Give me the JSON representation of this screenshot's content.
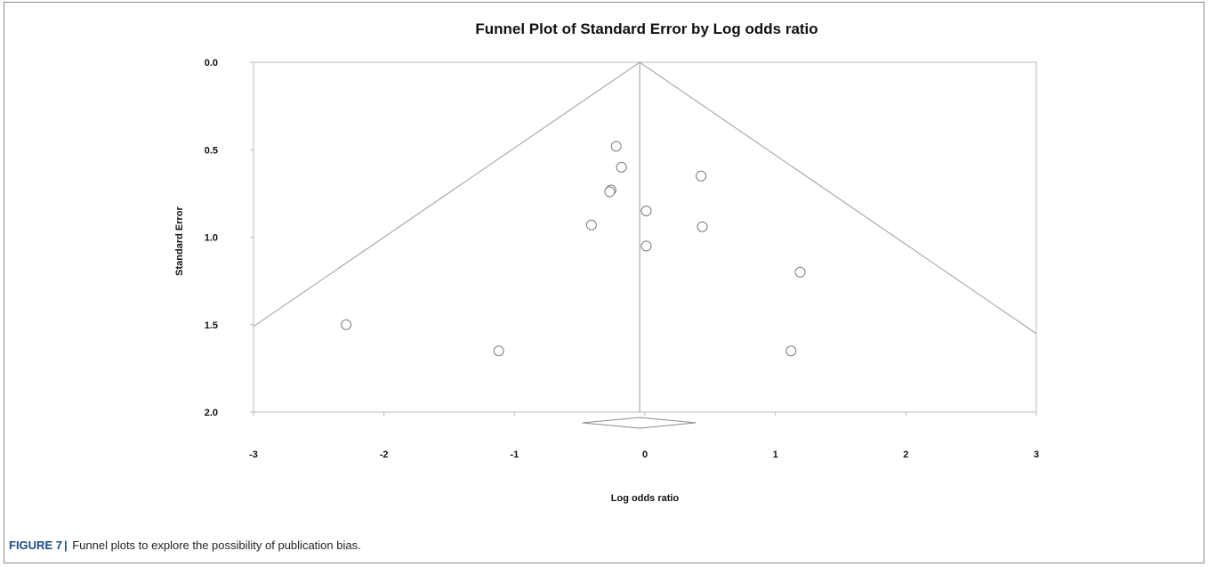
{
  "caption": {
    "label": "FIGURE 7",
    "text": "Funnel plots to explore the possibility of publication bias."
  },
  "chart_data": {
    "type": "scatter",
    "title": "Funnel Plot of Standard Error by Log odds ratio",
    "xlabel": "Log odds ratio",
    "ylabel": "Standard Error",
    "xlim": [
      -3,
      3
    ],
    "ylim": [
      0,
      2
    ],
    "y_inverted": true,
    "xticks": [
      "-3",
      "-2",
      "-1",
      "0",
      "1",
      "2",
      "3"
    ],
    "yticks": [
      "0.0",
      "0.5",
      "1.0",
      "1.5",
      "2.0"
    ],
    "grid": false,
    "pooled_estimate": -0.04,
    "funnel_multiplier": 1.96,
    "summary_diamond": {
      "center": -0.04,
      "lower": -0.48,
      "upper": 0.39
    },
    "points": [
      {
        "x": -0.22,
        "y": 0.48
      },
      {
        "x": -0.18,
        "y": 0.6
      },
      {
        "x": 0.43,
        "y": 0.65
      },
      {
        "x": -0.26,
        "y": 0.73
      },
      {
        "x": -0.27,
        "y": 0.74
      },
      {
        "x": 0.01,
        "y": 0.85
      },
      {
        "x": -0.41,
        "y": 0.93
      },
      {
        "x": 0.44,
        "y": 0.94
      },
      {
        "x": 0.01,
        "y": 1.05
      },
      {
        "x": 1.19,
        "y": 1.2
      },
      {
        "x": -2.29,
        "y": 1.5
      },
      {
        "x": -1.12,
        "y": 1.65
      },
      {
        "x": 1.12,
        "y": 1.65
      }
    ]
  }
}
